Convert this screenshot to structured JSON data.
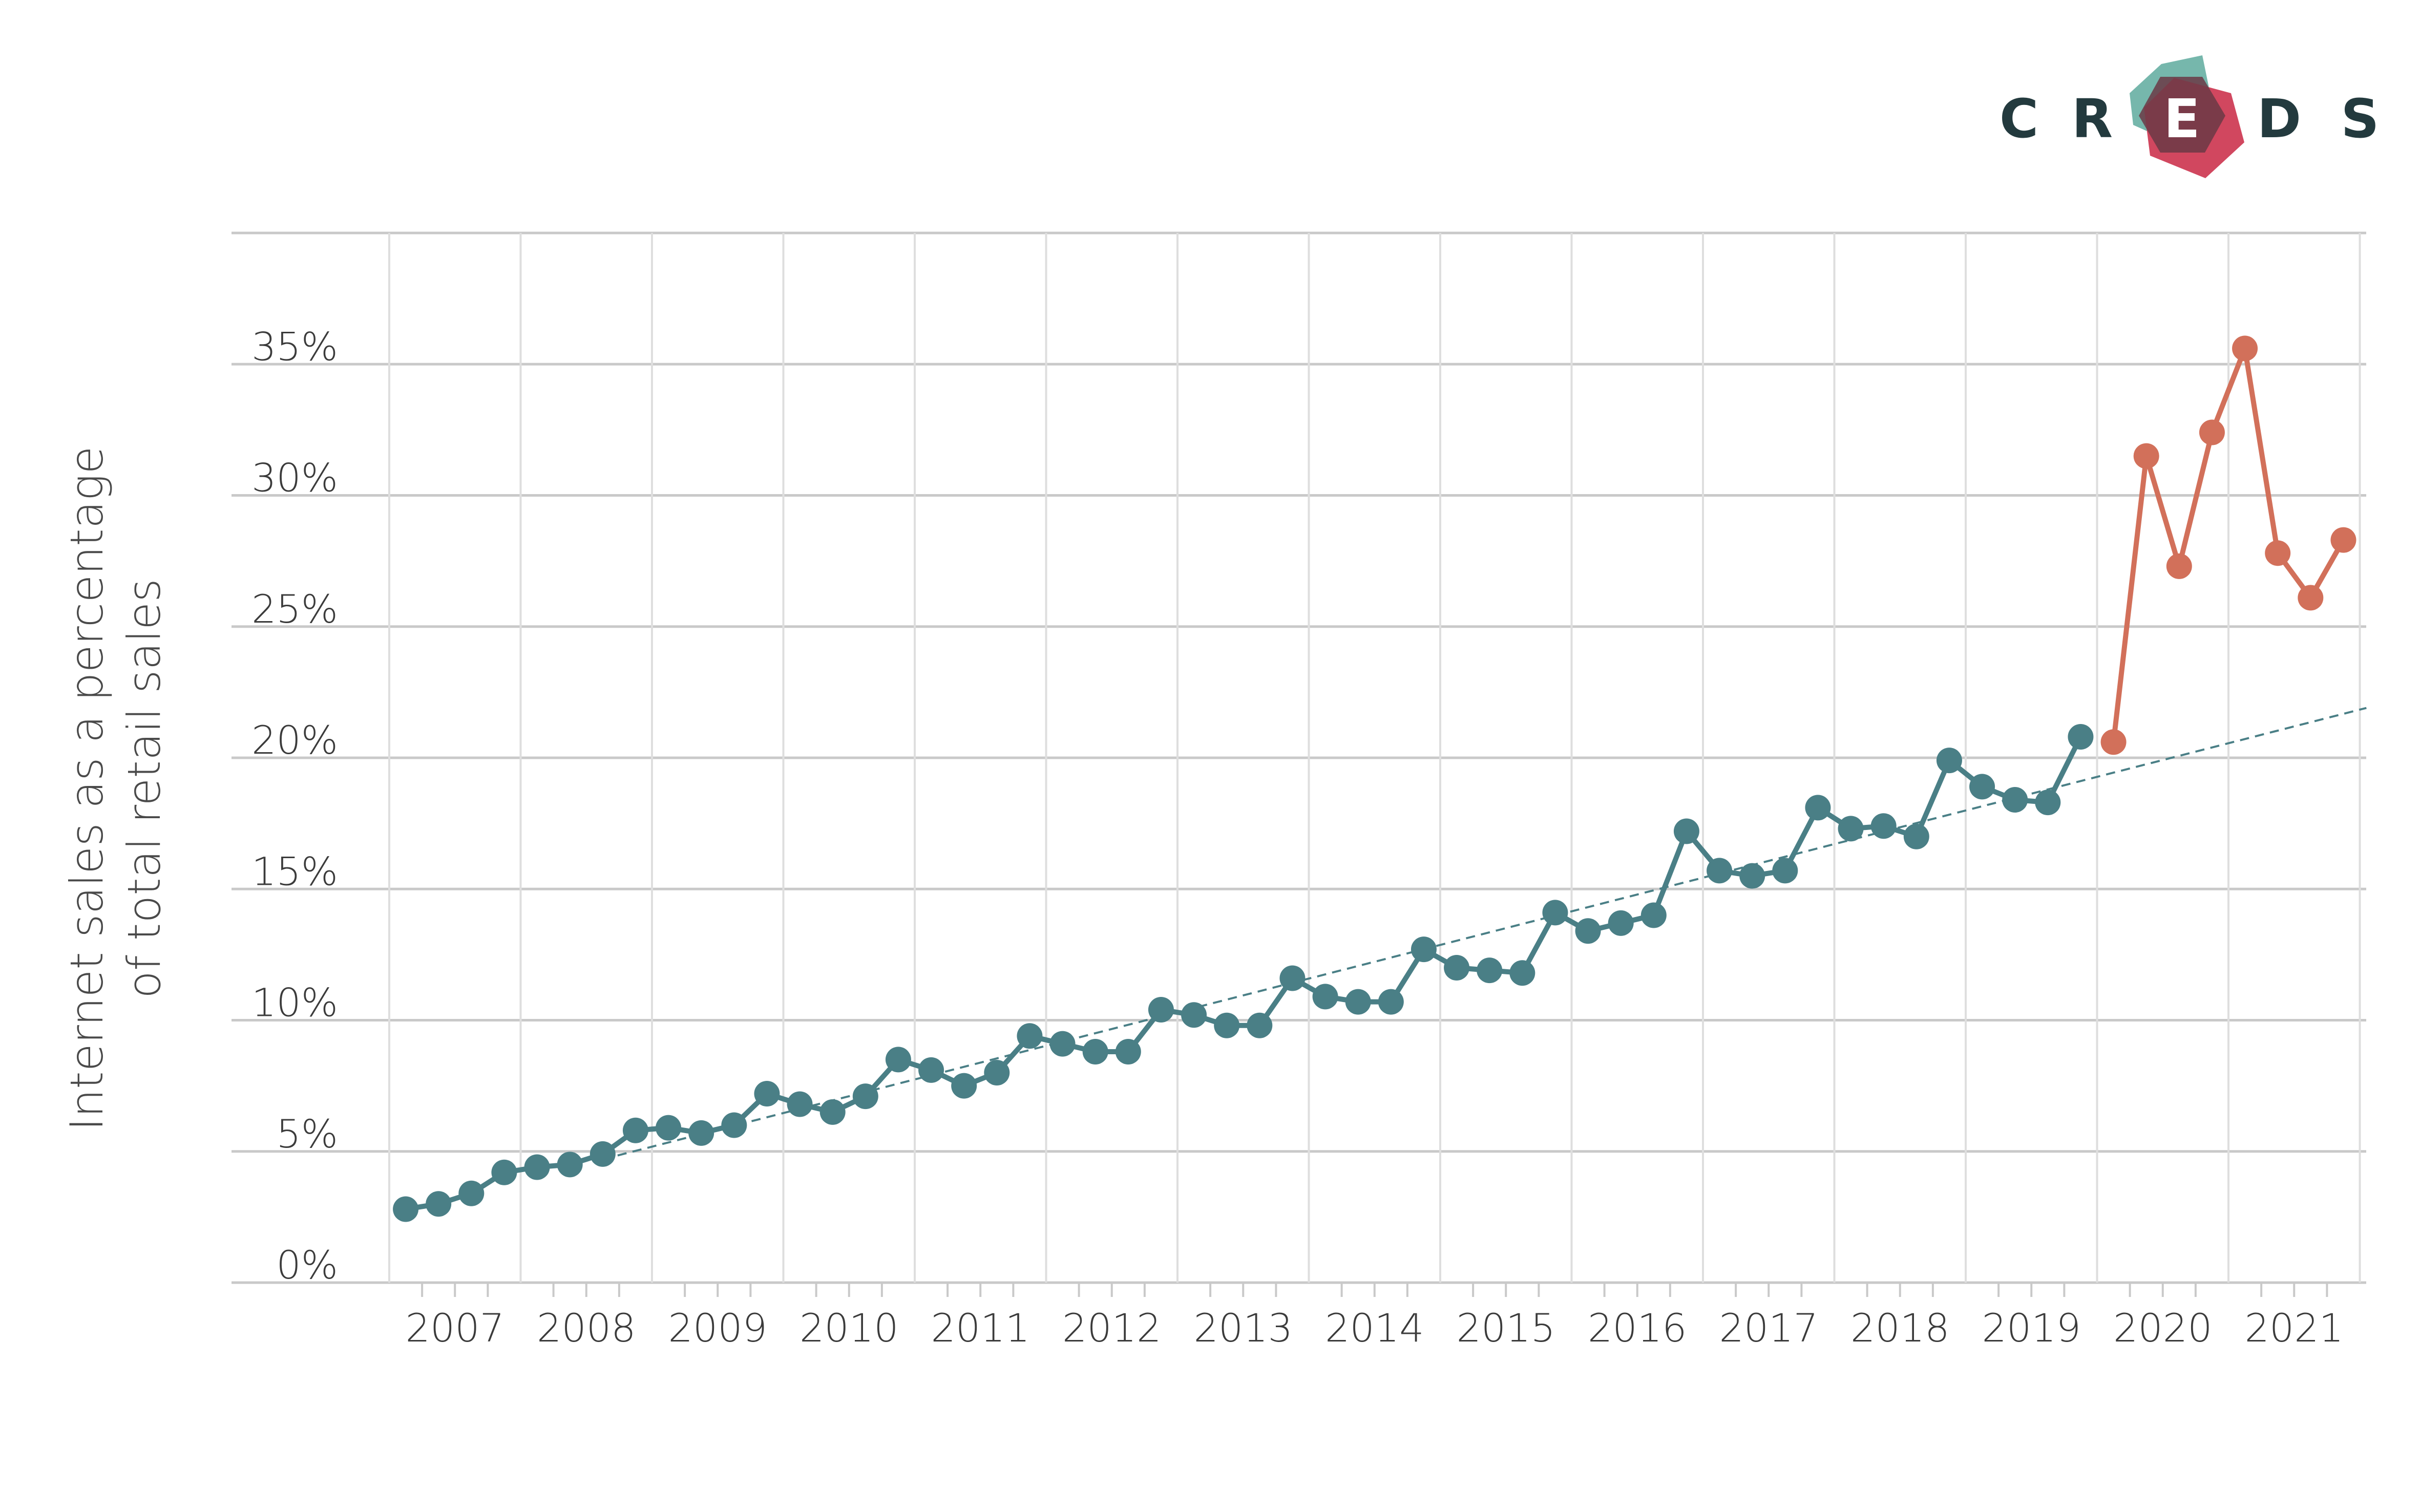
{
  "logo": {
    "letters": [
      "C",
      "R",
      "E",
      "D",
      "S"
    ],
    "colors": {
      "teal": "#6fb3a8",
      "red": "#d1475f",
      "dark": "#6b3945",
      "text": "#233a3e"
    }
  },
  "chart_data": {
    "type": "line",
    "title": "",
    "xlabel": "",
    "ylabel_line1": "Internet sales as a percentage",
    "ylabel_line2": "of total retail sales",
    "ylim": [
      0,
      40
    ],
    "yticks": [
      0,
      5,
      10,
      15,
      20,
      25,
      30,
      35
    ],
    "ytick_labels": [
      "0%",
      "5%",
      "10%",
      "15%",
      "20%",
      "25%",
      "30%",
      "35%"
    ],
    "x_years": [
      "2007",
      "2008",
      "2009",
      "2010",
      "2011",
      "2012",
      "2013",
      "2014",
      "2015",
      "2016",
      "2017",
      "2018",
      "2019",
      "2020",
      "2021"
    ],
    "grid": true,
    "legend": "none",
    "x_unit": "quarter index (2007 Q1 = 0)",
    "series": [
      {
        "color": "#4a7f86",
        "points": [
          [
            0,
            2.8
          ],
          [
            1,
            3.0
          ],
          [
            2,
            3.4
          ],
          [
            3,
            4.2
          ],
          [
            4,
            4.4
          ],
          [
            5,
            4.5
          ],
          [
            6,
            4.9
          ],
          [
            7,
            5.8
          ],
          [
            8,
            5.9
          ],
          [
            9,
            5.7
          ],
          [
            10,
            6.0
          ],
          [
            11,
            7.2
          ],
          [
            12,
            6.8
          ],
          [
            13,
            6.5
          ],
          [
            14,
            7.1
          ],
          [
            15,
            8.5
          ],
          [
            16,
            8.1
          ],
          [
            17,
            7.5
          ],
          [
            18,
            8.0
          ],
          [
            19,
            9.4
          ],
          [
            20,
            9.1
          ],
          [
            21,
            8.8
          ],
          [
            22,
            8.8
          ],
          [
            23,
            10.4
          ],
          [
            24,
            10.2
          ],
          [
            25,
            9.8
          ],
          [
            26,
            9.8
          ],
          [
            27,
            11.6
          ],
          [
            28,
            10.9
          ],
          [
            29,
            10.7
          ],
          [
            30,
            10.7
          ],
          [
            31,
            12.7
          ],
          [
            32,
            12.0
          ],
          [
            33,
            11.9
          ],
          [
            34,
            11.8
          ],
          [
            35,
            14.1
          ],
          [
            36,
            13.4
          ],
          [
            37,
            13.7
          ],
          [
            38,
            14.0
          ],
          [
            39,
            17.2
          ],
          [
            40,
            15.7
          ],
          [
            41,
            15.5
          ],
          [
            42,
            15.7
          ],
          [
            43,
            18.1
          ],
          [
            44,
            17.3
          ],
          [
            45,
            17.4
          ],
          [
            46,
            17.0
          ],
          [
            47,
            19.9
          ],
          [
            48,
            18.9
          ],
          [
            49,
            18.4
          ],
          [
            50,
            18.3
          ],
          [
            51,
            20.8
          ]
        ]
      },
      {
        "color": "#d2705a",
        "points": [
          [
            52,
            20.6
          ],
          [
            53,
            31.5
          ],
          [
            54,
            27.3
          ],
          [
            55,
            32.4
          ],
          [
            56,
            35.6
          ],
          [
            57,
            27.8
          ],
          [
            58,
            26.1
          ],
          [
            59,
            28.3
          ]
        ]
      }
    ],
    "trendline": {
      "color": "#4a7f86",
      "style": "dashed",
      "start": [
        6,
        4.7
      ],
      "end": [
        59.7,
        21.9
      ]
    }
  }
}
